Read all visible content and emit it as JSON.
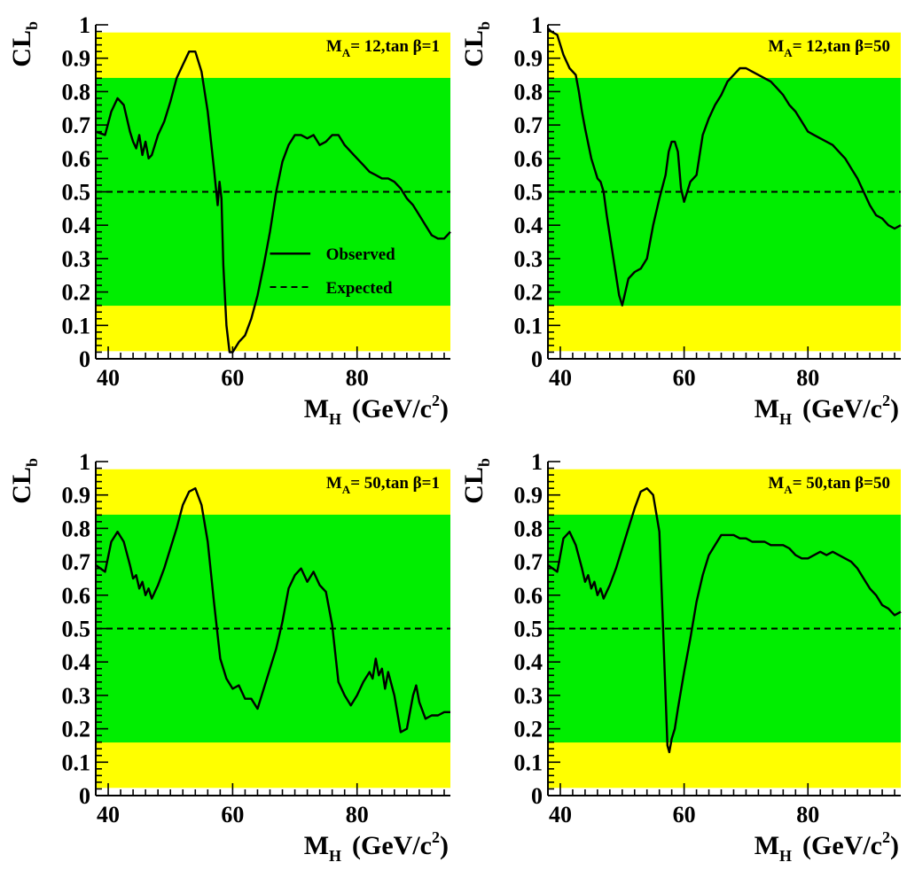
{
  "colors": {
    "outer_band": "#ffff00",
    "inner_band": "#00ee00",
    "observed": "#000000",
    "expected": "#000000"
  },
  "legend": {
    "observed_label": "Observed",
    "expected_label": "Expected"
  },
  "chart_data": [
    {
      "type": "line",
      "label_main": "M",
      "label_sub": "A",
      "label_rest": "= 12,tan β=1",
      "xlabel": "M_H (GeV/c^2)",
      "xlabel_main": "M",
      "xlabel_sub": "H",
      "xlabel_unit": "(GeV/c",
      "xlabel_sup": "2",
      "xlabel_close": ")",
      "ylabel": "CL_b",
      "ylabel_main": "CL",
      "ylabel_sub": "b",
      "xlim": [
        38,
        95
      ],
      "ylim": [
        0,
        1
      ],
      "xticks": [
        "40",
        "60",
        "80"
      ],
      "yticks": [
        "0",
        "0.1",
        "0.2",
        "0.3",
        "0.4",
        "0.5",
        "0.6",
        "0.7",
        "0.8",
        "0.9",
        "1"
      ],
      "bands": {
        "outer": [
          0.023,
          0.977
        ],
        "inner": [
          0.159,
          0.841
        ]
      },
      "show_legend": true,
      "series": [
        {
          "style": "solid",
          "x": [
            38,
            39.5,
            40.5,
            41.5,
            42.5,
            43.5,
            44,
            44.5,
            45,
            45.5,
            46,
            46.5,
            47,
            47.5,
            48,
            49,
            50,
            51,
            52,
            53,
            54,
            55,
            56,
            57,
            57.6,
            57.9,
            58.2,
            58.5,
            59,
            59.5,
            60,
            61,
            62,
            63,
            64,
            65,
            66,
            67,
            68,
            69,
            70,
            71,
            72,
            73,
            74,
            75,
            76,
            77,
            78,
            79,
            80,
            81,
            82,
            83,
            84,
            85,
            86,
            87,
            88,
            89,
            90,
            91,
            92,
            93,
            94,
            95
          ],
          "y": [
            0.68,
            0.67,
            0.74,
            0.78,
            0.76,
            0.68,
            0.65,
            0.63,
            0.67,
            0.61,
            0.65,
            0.6,
            0.61,
            0.64,
            0.67,
            0.71,
            0.77,
            0.84,
            0.88,
            0.92,
            0.92,
            0.86,
            0.74,
            0.57,
            0.46,
            0.53,
            0.48,
            0.28,
            0.1,
            0.02,
            0.02,
            0.05,
            0.07,
            0.12,
            0.19,
            0.28,
            0.38,
            0.5,
            0.59,
            0.64,
            0.67,
            0.67,
            0.66,
            0.67,
            0.64,
            0.65,
            0.67,
            0.67,
            0.64,
            0.62,
            0.6,
            0.58,
            0.56,
            0.55,
            0.54,
            0.54,
            0.53,
            0.51,
            0.48,
            0.46,
            0.43,
            0.4,
            0.37,
            0.36,
            0.36,
            0.38
          ]
        },
        {
          "style": "dashed",
          "x": [
            38,
            95
          ],
          "y": [
            0.5,
            0.5
          ]
        }
      ]
    },
    {
      "type": "line",
      "label_main": "M",
      "label_sub": "A",
      "label_rest": "= 12,tan β=50",
      "xlabel": "M_H (GeV/c^2)",
      "xlabel_main": "M",
      "xlabel_sub": "H",
      "xlabel_unit": "(GeV/c",
      "xlabel_sup": "2",
      "xlabel_close": ")",
      "ylabel": "CL_b",
      "ylabel_main": "CL",
      "ylabel_sub": "b",
      "xlim": [
        38,
        95
      ],
      "ylim": [
        0,
        1
      ],
      "xticks": [
        "40",
        "60",
        "80"
      ],
      "yticks": [
        "0",
        "0.1",
        "0.2",
        "0.3",
        "0.4",
        "0.5",
        "0.6",
        "0.7",
        "0.8",
        "0.9",
        "1"
      ],
      "bands": {
        "outer": [
          0.023,
          0.977
        ],
        "inner": [
          0.159,
          0.841
        ]
      },
      "show_legend": false,
      "series": [
        {
          "style": "solid",
          "x": [
            38,
            38.5,
            39.5,
            40.5,
            41.5,
            42.5,
            43,
            43.5,
            44,
            45,
            46,
            46.5,
            47,
            47.5,
            48,
            48.5,
            49,
            49.5,
            50,
            50.5,
            51,
            52,
            53,
            54,
            55,
            56,
            57,
            57.5,
            58,
            58.5,
            59,
            59.5,
            60,
            60.5,
            61,
            62,
            63,
            64,
            65,
            66,
            67,
            68,
            69,
            70,
            71,
            72,
            73,
            74,
            75,
            76,
            77,
            78,
            79,
            80,
            81,
            82,
            83,
            84,
            85,
            86,
            87,
            88,
            89,
            90,
            91,
            92,
            93,
            94,
            95
          ],
          "y": [
            0.99,
            0.98,
            0.97,
            0.91,
            0.87,
            0.85,
            0.8,
            0.74,
            0.69,
            0.6,
            0.54,
            0.53,
            0.5,
            0.43,
            0.37,
            0.31,
            0.25,
            0.19,
            0.16,
            0.2,
            0.24,
            0.26,
            0.27,
            0.3,
            0.4,
            0.48,
            0.55,
            0.62,
            0.65,
            0.65,
            0.62,
            0.51,
            0.47,
            0.5,
            0.53,
            0.55,
            0.67,
            0.72,
            0.76,
            0.79,
            0.83,
            0.85,
            0.87,
            0.87,
            0.86,
            0.85,
            0.84,
            0.83,
            0.81,
            0.79,
            0.76,
            0.74,
            0.71,
            0.68,
            0.67,
            0.66,
            0.65,
            0.64,
            0.62,
            0.6,
            0.57,
            0.54,
            0.5,
            0.46,
            0.43,
            0.42,
            0.4,
            0.39,
            0.4
          ]
        },
        {
          "style": "dashed",
          "x": [
            38,
            95
          ],
          "y": [
            0.5,
            0.5
          ]
        }
      ]
    },
    {
      "type": "line",
      "label_main": "M",
      "label_sub": "A",
      "label_rest": "= 50,tan β=1",
      "xlabel": "M_H (GeV/c^2)",
      "xlabel_main": "M",
      "xlabel_sub": "H",
      "xlabel_unit": "(GeV/c",
      "xlabel_sup": "2",
      "xlabel_close": ")",
      "ylabel": "CL_b",
      "ylabel_main": "CL",
      "ylabel_sub": "b",
      "xlim": [
        38,
        95
      ],
      "ylim": [
        0,
        1
      ],
      "xticks": [
        "40",
        "60",
        "80"
      ],
      "yticks": [
        "0",
        "0.1",
        "0.2",
        "0.3",
        "0.4",
        "0.5",
        "0.6",
        "0.7",
        "0.8",
        "0.9",
        "1"
      ],
      "bands": {
        "outer": [
          0.023,
          0.977
        ],
        "inner": [
          0.159,
          0.841
        ]
      },
      "show_legend": false,
      "series": [
        {
          "style": "solid",
          "x": [
            38,
            39.5,
            40.5,
            41.5,
            42.5,
            43.5,
            44,
            44.5,
            45,
            45.5,
            46,
            46.5,
            47,
            47.5,
            48,
            49,
            50,
            51,
            52,
            53,
            54,
            55,
            56,
            57,
            58,
            59,
            60,
            61,
            62,
            63,
            64,
            65,
            66,
            67,
            68,
            69,
            70,
            71,
            72,
            73,
            74,
            75,
            76,
            77,
            78,
            79,
            80,
            81,
            82,
            82.5,
            83,
            83.5,
            84,
            84.5,
            85,
            86,
            87,
            88,
            89,
            89.5,
            90,
            91,
            92,
            93,
            94,
            95
          ],
          "y": [
            0.69,
            0.67,
            0.76,
            0.79,
            0.76,
            0.69,
            0.65,
            0.66,
            0.62,
            0.64,
            0.6,
            0.62,
            0.59,
            0.61,
            0.63,
            0.68,
            0.74,
            0.8,
            0.87,
            0.91,
            0.92,
            0.87,
            0.76,
            0.58,
            0.41,
            0.35,
            0.32,
            0.33,
            0.29,
            0.29,
            0.26,
            0.32,
            0.38,
            0.44,
            0.52,
            0.62,
            0.66,
            0.68,
            0.64,
            0.67,
            0.63,
            0.61,
            0.51,
            0.34,
            0.3,
            0.27,
            0.3,
            0.34,
            0.37,
            0.35,
            0.41,
            0.36,
            0.38,
            0.32,
            0.37,
            0.3,
            0.19,
            0.2,
            0.3,
            0.33,
            0.28,
            0.23,
            0.24,
            0.24,
            0.25,
            0.25
          ]
        },
        {
          "style": "dashed",
          "x": [
            38,
            95
          ],
          "y": [
            0.5,
            0.5
          ]
        }
      ]
    },
    {
      "type": "line",
      "label_main": "M",
      "label_sub": "A",
      "label_rest": "= 50,tan β=50",
      "xlabel": "M_H (GeV/c^2)",
      "xlabel_main": "M",
      "xlabel_sub": "H",
      "xlabel_unit": "(GeV/c",
      "xlabel_sup": "2",
      "xlabel_close": ")",
      "ylabel": "CL_b",
      "ylabel_main": "CL",
      "ylabel_sub": "b",
      "xlim": [
        38,
        95
      ],
      "ylim": [
        0,
        1
      ],
      "xticks": [
        "40",
        "60",
        "80"
      ],
      "yticks": [
        "0",
        "0.1",
        "0.2",
        "0.3",
        "0.4",
        "0.5",
        "0.6",
        "0.7",
        "0.8",
        "0.9",
        "1"
      ],
      "bands": {
        "outer": [
          0.023,
          0.977
        ],
        "inner": [
          0.159,
          0.841
        ]
      },
      "show_legend": false,
      "series": [
        {
          "style": "solid",
          "x": [
            38,
            39.5,
            40.5,
            41.5,
            42.5,
            43.5,
            44,
            44.5,
            45,
            45.5,
            46,
            46.5,
            47,
            47.5,
            48,
            49,
            50,
            51,
            52,
            53,
            54,
            55,
            56,
            56.5,
            57,
            57.3,
            57.6,
            58,
            58.5,
            59,
            60,
            61,
            62,
            63,
            64,
            65,
            66,
            67,
            68,
            69,
            70,
            71,
            72,
            73,
            74,
            75,
            76,
            77,
            78,
            79,
            80,
            81,
            82,
            83,
            84,
            85,
            86,
            87,
            88,
            89,
            90,
            91,
            92,
            93,
            94,
            95
          ],
          "y": [
            0.69,
            0.67,
            0.77,
            0.79,
            0.75,
            0.68,
            0.64,
            0.66,
            0.62,
            0.64,
            0.6,
            0.62,
            0.59,
            0.61,
            0.63,
            0.68,
            0.74,
            0.8,
            0.86,
            0.91,
            0.92,
            0.9,
            0.79,
            0.55,
            0.3,
            0.15,
            0.13,
            0.17,
            0.2,
            0.26,
            0.37,
            0.47,
            0.58,
            0.66,
            0.72,
            0.75,
            0.78,
            0.78,
            0.78,
            0.77,
            0.77,
            0.76,
            0.76,
            0.76,
            0.75,
            0.75,
            0.75,
            0.74,
            0.72,
            0.71,
            0.71,
            0.72,
            0.73,
            0.72,
            0.73,
            0.72,
            0.71,
            0.7,
            0.68,
            0.65,
            0.62,
            0.6,
            0.57,
            0.56,
            0.54,
            0.55
          ]
        },
        {
          "style": "dashed",
          "x": [
            38,
            95
          ],
          "y": [
            0.5,
            0.5
          ]
        }
      ]
    }
  ]
}
